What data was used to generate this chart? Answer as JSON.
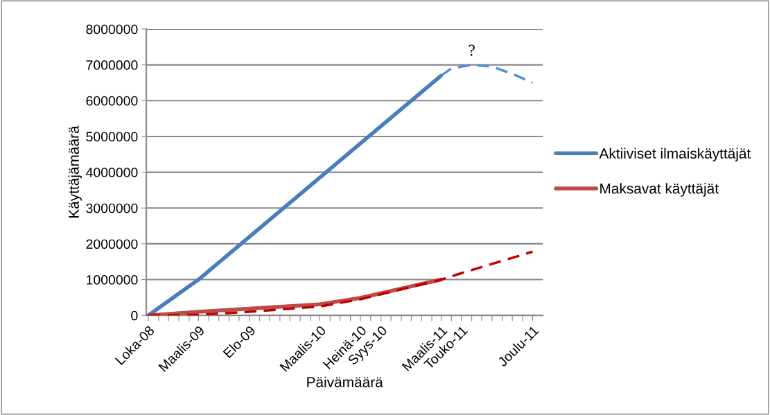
{
  "chart_data": {
    "type": "line",
    "xlabel": "Päivämäärä",
    "ylabel": "Käyttäjämäärä",
    "xlim": [
      "2008-09-25",
      "2012-01-01"
    ],
    "xticks": [
      {
        "value": "2008-10",
        "label": "Loka-08"
      },
      {
        "value": "2008-11",
        "label": null
      },
      {
        "value": "2008-12",
        "label": null
      },
      {
        "value": "2009-01",
        "label": null
      },
      {
        "value": "2009-02",
        "label": null
      },
      {
        "value": "2009-03",
        "label": "Maalis-09"
      },
      {
        "value": "2009-04",
        "label": null
      },
      {
        "value": "2009-05",
        "label": null
      },
      {
        "value": "2009-06",
        "label": null
      },
      {
        "value": "2009-07",
        "label": null
      },
      {
        "value": "2009-08",
        "label": "Elo-09"
      },
      {
        "value": "2009-09",
        "label": null
      },
      {
        "value": "2009-10",
        "label": null
      },
      {
        "value": "2009-11",
        "label": null
      },
      {
        "value": "2009-12",
        "label": null
      },
      {
        "value": "2010-01",
        "label": null
      },
      {
        "value": "2010-02",
        "label": null
      },
      {
        "value": "2010-03",
        "label": "Maalis-10"
      },
      {
        "value": "2010-04",
        "label": null
      },
      {
        "value": "2010-05",
        "label": null
      },
      {
        "value": "2010-06",
        "label": null
      },
      {
        "value": "2010-07",
        "label": "Heinä-10"
      },
      {
        "value": "2010-08",
        "label": null
      },
      {
        "value": "2010-09",
        "label": "Syys-10"
      },
      {
        "value": "2010-10",
        "label": null
      },
      {
        "value": "2010-11",
        "label": null
      },
      {
        "value": "2010-12",
        "label": null
      },
      {
        "value": "2011-01",
        "label": null
      },
      {
        "value": "2011-02",
        "label": null
      },
      {
        "value": "2011-03",
        "label": "Maalis-11"
      },
      {
        "value": "2011-04",
        "label": null
      },
      {
        "value": "2011-05",
        "label": "Touko-11"
      },
      {
        "value": "2011-06",
        "label": null
      },
      {
        "value": "2011-07",
        "label": null
      },
      {
        "value": "2011-08",
        "label": null
      },
      {
        "value": "2011-09",
        "label": null
      },
      {
        "value": "2011-10",
        "label": null
      },
      {
        "value": "2011-11",
        "label": null
      },
      {
        "value": "2011-12",
        "label": "Joulu-11"
      }
    ],
    "ylim": [
      0,
      8000000
    ],
    "yticks": [
      0,
      1000000,
      2000000,
      3000000,
      4000000,
      5000000,
      6000000,
      7000000,
      8000000
    ],
    "grid": "y",
    "legend": "right",
    "marker": "none",
    "series": [
      {
        "name": "Aktiiviset ilmaiskäyttäjät",
        "color": "#4a7ebb",
        "line_style": "solid",
        "x": [
          "2008-10",
          "2009-03",
          "2011-03"
        ],
        "values": [
          0,
          1000000,
          6700000
        ]
      },
      {
        "color": "#558ed5",
        "line_style": "dashed",
        "x": [
          "2011-03",
          "2011-04",
          "2011-06",
          "2011-08",
          "2011-10",
          "2011-12"
        ],
        "values": [
          6700000,
          6900000,
          7000000,
          6950000,
          6750000,
          6500000
        ]
      },
      {
        "name": "Maksavat käyttäjät",
        "color": "#be4b48",
        "line_style": "solid",
        "x": [
          "2008-10",
          "2009-03",
          "2010-03",
          "2010-07",
          "2011-03"
        ],
        "values": [
          0,
          100000,
          310000,
          490000,
          1000000
        ]
      },
      {
        "color": "#c00000",
        "line_style": "dashed",
        "x": [
          "2008-10",
          "2009-03",
          "2009-08",
          "2010-03",
          "2010-07",
          "2011-03",
          "2011-05",
          "2011-12"
        ],
        "values": [
          0,
          20000,
          100000,
          250000,
          450000,
          1000000,
          1180000,
          1780000
        ]
      }
    ],
    "annotations": [
      {
        "text": "?",
        "x": "2011-06",
        "y": 7000000
      }
    ]
  }
}
